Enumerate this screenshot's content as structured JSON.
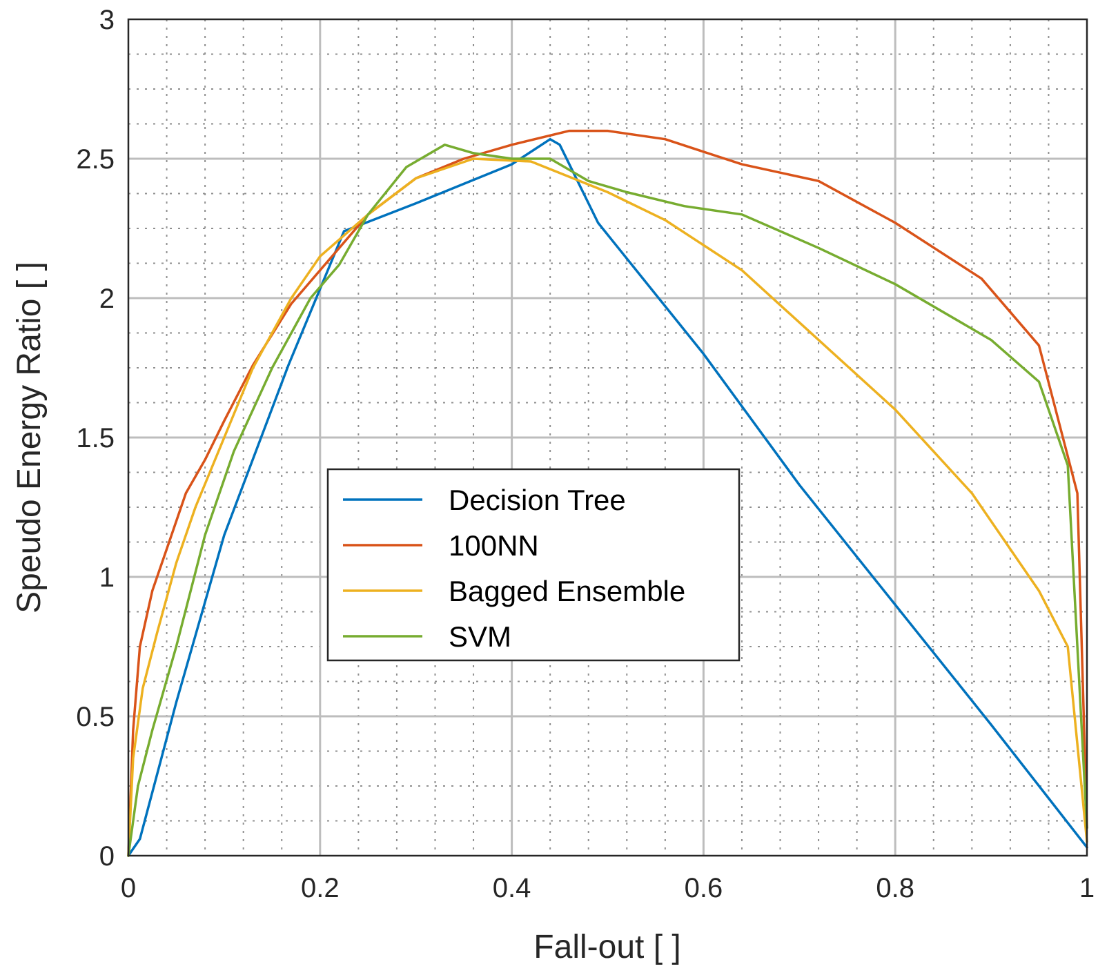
{
  "chart_data": {
    "type": "line",
    "title": "",
    "xlabel": "Fall-out [ ]",
    "ylabel": "Speudo Energy Ratio [ ]",
    "xlim": [
      0,
      1
    ],
    "ylim": [
      0,
      3
    ],
    "x_ticks": [
      "0",
      "0.2",
      "0.4",
      "0.6",
      "0.8",
      "1"
    ],
    "y_ticks": [
      "0",
      "0.5",
      "1",
      "1.5",
      "2",
      "2.5",
      "3"
    ],
    "grid": true,
    "minor_grid": true,
    "legend_position": "center-left",
    "series": [
      {
        "name": "Decision Tree",
        "color": "#0072BD",
        "x": [
          0,
          0.012,
          0.05,
          0.1,
          0.167,
          0.225,
          0.3,
          0.35,
          0.4,
          0.44,
          0.45,
          0.49,
          0.6,
          0.7,
          0.8,
          0.9,
          1.0
        ],
        "y": [
          0,
          0.06,
          0.55,
          1.15,
          1.76,
          2.24,
          2.34,
          2.41,
          2.48,
          2.57,
          2.55,
          2.27,
          1.8,
          1.33,
          0.9,
          0.47,
          0.03
        ]
      },
      {
        "name": "100NN",
        "color": "#D95319",
        "x": [
          0,
          0.005,
          0.012,
          0.025,
          0.04,
          0.06,
          0.08,
          0.1,
          0.13,
          0.17,
          0.2,
          0.25,
          0.3,
          0.35,
          0.4,
          0.46,
          0.5,
          0.56,
          0.64,
          0.72,
          0.8,
          0.89,
          0.95,
          0.99,
          1.0
        ],
        "y": [
          0,
          0.45,
          0.75,
          0.95,
          1.1,
          1.3,
          1.42,
          1.56,
          1.76,
          1.98,
          2.1,
          2.3,
          2.43,
          2.5,
          2.55,
          2.6,
          2.6,
          2.57,
          2.48,
          2.42,
          2.27,
          2.07,
          1.83,
          1.3,
          0.1
        ]
      },
      {
        "name": "Bagged Ensemble",
        "color": "#EDB120",
        "x": [
          0,
          0.005,
          0.015,
          0.03,
          0.05,
          0.07,
          0.1,
          0.13,
          0.17,
          0.2,
          0.25,
          0.3,
          0.36,
          0.42,
          0.5,
          0.56,
          0.64,
          0.72,
          0.8,
          0.88,
          0.95,
          0.98,
          1.0
        ],
        "y": [
          0,
          0.35,
          0.6,
          0.8,
          1.05,
          1.25,
          1.5,
          1.75,
          2.0,
          2.15,
          2.3,
          2.43,
          2.5,
          2.49,
          2.38,
          2.28,
          2.1,
          1.85,
          1.6,
          1.3,
          0.95,
          0.75,
          0.05
        ]
      },
      {
        "name": "SVM",
        "color": "#77AC30",
        "x": [
          0,
          0.01,
          0.025,
          0.05,
          0.08,
          0.11,
          0.15,
          0.19,
          0.22,
          0.25,
          0.29,
          0.33,
          0.36,
          0.4,
          0.44,
          0.48,
          0.52,
          0.58,
          0.64,
          0.72,
          0.8,
          0.9,
          0.95,
          0.98,
          1.0
        ],
        "y": [
          0,
          0.25,
          0.45,
          0.75,
          1.15,
          1.45,
          1.75,
          2.0,
          2.12,
          2.3,
          2.47,
          2.55,
          2.52,
          2.5,
          2.5,
          2.42,
          2.38,
          2.33,
          2.3,
          2.18,
          2.05,
          1.85,
          1.7,
          1.4,
          0.1
        ]
      }
    ]
  }
}
